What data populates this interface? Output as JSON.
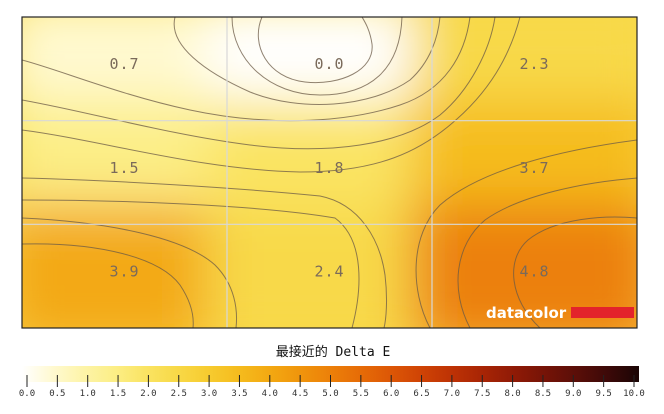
{
  "chart_data": {
    "type": "heatmap",
    "title": "最接近的 Delta E",
    "rows": 3,
    "cols": 3,
    "values": [
      [
        0.7,
        0.0,
        2.3
      ],
      [
        1.5,
        1.8,
        3.7
      ],
      [
        3.9,
        2.4,
        4.8
      ]
    ],
    "value_labels": [
      [
        "0.7",
        "0.0",
        "2.3"
      ],
      [
        "1.5",
        "1.8",
        "3.7"
      ],
      [
        "3.9",
        "2.4",
        "4.8"
      ]
    ],
    "scale": {
      "min": 0.0,
      "max": 10.0,
      "step": 0.5,
      "tick_labels": [
        "0.0",
        "0.5",
        "1.0",
        "1.5",
        "2.0",
        "2.5",
        "3.0",
        "3.5",
        "4.0",
        "4.5",
        "5.0",
        "5.5",
        "6.0",
        "6.5",
        "7.0",
        "7.5",
        "8.0",
        "8.5",
        "9.0",
        "9.5",
        "10.0"
      ],
      "colors": [
        "#ffffff",
        "#fff9d0",
        "#fdf4a8",
        "#fcee86",
        "#fae463",
        "#f8d948",
        "#f7cc30",
        "#f5bc1e",
        "#f3a912",
        "#f0950c",
        "#ec8009",
        "#e66b07",
        "#dc5606",
        "#ce4205",
        "#bc3105",
        "#a62405",
        "#8e1a06",
        "#741307",
        "#590e08",
        "#3c0908",
        "#1a0505"
      ]
    },
    "grid": true,
    "contours": true
  },
  "logo": {
    "text": "datacolor",
    "bar_color": "#e3232b"
  }
}
